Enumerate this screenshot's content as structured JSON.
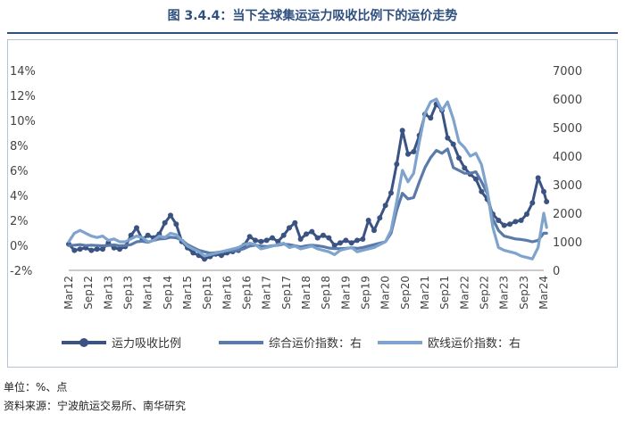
{
  "figure": {
    "title": "图 3.4.4：当下全球集运运力吸收比例下的运价走势",
    "unit_note": "单位：%、点",
    "source_note": "资料来源：宁波航运交易所、南华研究"
  },
  "chart_data": {
    "type": "line",
    "title": "图 3.4.4：当下全球集运运力吸收比例下的运价走势",
    "x_ticks": [
      "Mar12",
      "Sep12",
      "Mar13",
      "Sep13",
      "Mar14",
      "Sep14",
      "Mar15",
      "Sep15",
      "Mar16",
      "Sep16",
      "Mar17",
      "Sep17",
      "Mar18",
      "Sep18",
      "Mar19",
      "Sep19",
      "Mar20",
      "Sep20",
      "Mar21",
      "Sep21",
      "Mar22",
      "Sep22",
      "Mar23",
      "Sep23",
      "Mar24"
    ],
    "left_axis": {
      "ylim": [
        -2,
        14
      ],
      "ticks": [
        -2,
        0,
        2,
        4,
        6,
        8,
        10,
        12,
        14
      ],
      "tick_labels": [
        "-2%",
        "0%",
        "2%",
        "4%",
        "6%",
        "8%",
        "10%",
        "12%",
        "14%"
      ]
    },
    "right_axis": {
      "ylim": [
        0,
        7000
      ],
      "ticks": [
        0,
        1000,
        2000,
        3000,
        4000,
        5000,
        6000,
        7000
      ],
      "tick_labels": [
        "0",
        "1000",
        "2000",
        "3000",
        "4000",
        "5000",
        "6000",
        "7000"
      ]
    },
    "legend_position": "bottom",
    "series": [
      {
        "name": "运力吸收比例",
        "axis": "left",
        "color": "#3a5383",
        "marker": true,
        "points": [
          [
            0,
            0.1
          ],
          [
            2,
            -0.4
          ],
          [
            4,
            -0.3
          ],
          [
            6,
            -0.2
          ],
          [
            8,
            -0.4
          ],
          [
            10,
            -0.3
          ],
          [
            12,
            -0.3
          ],
          [
            14,
            0.2
          ],
          [
            16,
            -0.2
          ],
          [
            18,
            -0.3
          ],
          [
            20,
            -0.1
          ],
          [
            22,
            0.8
          ],
          [
            24,
            1.4
          ],
          [
            26,
            0.5
          ],
          [
            28,
            0.8
          ],
          [
            30,
            0.6
          ],
          [
            32,
            0.9
          ],
          [
            34,
            1.8
          ],
          [
            36,
            2.4
          ],
          [
            38,
            1.7
          ],
          [
            40,
            0.3
          ],
          [
            42,
            -0.2
          ],
          [
            44,
            -0.6
          ],
          [
            46,
            -0.8
          ],
          [
            48,
            -1.1
          ],
          [
            50,
            -0.9
          ],
          [
            52,
            -0.7
          ],
          [
            54,
            -0.8
          ],
          [
            56,
            -0.6
          ],
          [
            58,
            -0.5
          ],
          [
            60,
            -0.4
          ],
          [
            62,
            0.0
          ],
          [
            64,
            0.7
          ],
          [
            66,
            0.4
          ],
          [
            68,
            0.3
          ],
          [
            70,
            0.4
          ],
          [
            72,
            0.6
          ],
          [
            74,
            0.3
          ],
          [
            76,
            0.8
          ],
          [
            78,
            1.4
          ],
          [
            80,
            1.8
          ],
          [
            82,
            0.5
          ],
          [
            84,
            0.9
          ],
          [
            86,
            1.1
          ],
          [
            88,
            0.6
          ],
          [
            90,
            0.8
          ],
          [
            92,
            0.6
          ],
          [
            94,
            0.0
          ],
          [
            96,
            0.2
          ],
          [
            98,
            0.4
          ],
          [
            100,
            0.2
          ],
          [
            102,
            0.4
          ],
          [
            104,
            0.5
          ],
          [
            106,
            2.0
          ],
          [
            108,
            1.2
          ],
          [
            110,
            2.2
          ],
          [
            112,
            3.2
          ],
          [
            114,
            4.2
          ],
          [
            116,
            6.5
          ],
          [
            118,
            9.2
          ],
          [
            120,
            7.3
          ],
          [
            122,
            7.5
          ],
          [
            124,
            8.8
          ],
          [
            126,
            10.5
          ],
          [
            128,
            10.2
          ],
          [
            130,
            11.3
          ],
          [
            132,
            10.8
          ],
          [
            134,
            8.6
          ],
          [
            136,
            8.1
          ],
          [
            138,
            7.0
          ],
          [
            140,
            6.2
          ],
          [
            142,
            5.7
          ],
          [
            144,
            5.3
          ],
          [
            146,
            4.3
          ],
          [
            148,
            3.7
          ],
          [
            150,
            2.5
          ],
          [
            152,
            2.0
          ],
          [
            154,
            1.6
          ],
          [
            156,
            1.7
          ],
          [
            158,
            1.9
          ],
          [
            160,
            2.0
          ],
          [
            162,
            2.5
          ],
          [
            164,
            3.4
          ],
          [
            166,
            5.4
          ],
          [
            168,
            4.3
          ],
          [
            169,
            3.5
          ]
        ]
      },
      {
        "name": "综合运价指数：右",
        "axis": "right",
        "color": "#5a7aaa",
        "marker": false,
        "points": [
          [
            0,
            870
          ],
          [
            2,
            880
          ],
          [
            4,
            900
          ],
          [
            6,
            870
          ],
          [
            8,
            880
          ],
          [
            10,
            870
          ],
          [
            12,
            860
          ],
          [
            14,
            870
          ],
          [
            16,
            890
          ],
          [
            18,
            860
          ],
          [
            20,
            870
          ],
          [
            22,
            900
          ],
          [
            24,
            1000
          ],
          [
            26,
            1020
          ],
          [
            28,
            980
          ],
          [
            30,
            1050
          ],
          [
            32,
            1100
          ],
          [
            34,
            1110
          ],
          [
            36,
            1160
          ],
          [
            38,
            1140
          ],
          [
            40,
            1060
          ],
          [
            42,
            900
          ],
          [
            44,
            800
          ],
          [
            46,
            700
          ],
          [
            48,
            650
          ],
          [
            50,
            600
          ],
          [
            52,
            620
          ],
          [
            54,
            650
          ],
          [
            56,
            680
          ],
          [
            58,
            680
          ],
          [
            60,
            700
          ],
          [
            62,
            760
          ],
          [
            64,
            850
          ],
          [
            66,
            880
          ],
          [
            68,
            850
          ],
          [
            70,
            830
          ],
          [
            72,
            860
          ],
          [
            74,
            880
          ],
          [
            76,
            920
          ],
          [
            78,
            900
          ],
          [
            80,
            860
          ],
          [
            82,
            820
          ],
          [
            84,
            860
          ],
          [
            86,
            880
          ],
          [
            88,
            860
          ],
          [
            90,
            830
          ],
          [
            92,
            780
          ],
          [
            94,
            760
          ],
          [
            96,
            760
          ],
          [
            98,
            770
          ],
          [
            100,
            790
          ],
          [
            102,
            770
          ],
          [
            104,
            800
          ],
          [
            106,
            850
          ],
          [
            108,
            900
          ],
          [
            110,
            950
          ],
          [
            112,
            1000
          ],
          [
            114,
            1300
          ],
          [
            116,
            2100
          ],
          [
            118,
            2700
          ],
          [
            120,
            2500
          ],
          [
            122,
            2550
          ],
          [
            124,
            3100
          ],
          [
            126,
            3600
          ],
          [
            128,
            3950
          ],
          [
            130,
            4200
          ],
          [
            132,
            4100
          ],
          [
            134,
            4250
          ],
          [
            136,
            3600
          ],
          [
            138,
            3500
          ],
          [
            140,
            3400
          ],
          [
            142,
            3400
          ],
          [
            144,
            3450
          ],
          [
            146,
            3100
          ],
          [
            148,
            2700
          ],
          [
            150,
            1800
          ],
          [
            152,
            1400
          ],
          [
            154,
            1200
          ],
          [
            156,
            1150
          ],
          [
            158,
            1100
          ],
          [
            160,
            1080
          ],
          [
            162,
            1050
          ],
          [
            164,
            1000
          ],
          [
            166,
            1050
          ],
          [
            168,
            1300
          ],
          [
            169,
            1300
          ]
        ]
      },
      {
        "name": "欧线运价指数：右",
        "axis": "right",
        "color": "#7ea3cd",
        "marker": false,
        "points": [
          [
            0,
            1000
          ],
          [
            2,
            1300
          ],
          [
            4,
            1400
          ],
          [
            6,
            1300
          ],
          [
            8,
            1200
          ],
          [
            10,
            1150
          ],
          [
            12,
            1200
          ],
          [
            14,
            1050
          ],
          [
            16,
            1100
          ],
          [
            18,
            1000
          ],
          [
            20,
            1000
          ],
          [
            22,
            1100
          ],
          [
            24,
            1200
          ],
          [
            26,
            1150
          ],
          [
            28,
            1000
          ],
          [
            30,
            1050
          ],
          [
            32,
            1200
          ],
          [
            34,
            1150
          ],
          [
            36,
            1300
          ],
          [
            38,
            1250
          ],
          [
            40,
            1050
          ],
          [
            42,
            850
          ],
          [
            44,
            750
          ],
          [
            46,
            650
          ],
          [
            48,
            500
          ],
          [
            50,
            550
          ],
          [
            52,
            600
          ],
          [
            54,
            650
          ],
          [
            56,
            700
          ],
          [
            58,
            750
          ],
          [
            60,
            800
          ],
          [
            62,
            900
          ],
          [
            64,
            950
          ],
          [
            66,
            900
          ],
          [
            68,
            750
          ],
          [
            70,
            800
          ],
          [
            72,
            850
          ],
          [
            74,
            900
          ],
          [
            76,
            950
          ],
          [
            78,
            800
          ],
          [
            80,
            850
          ],
          [
            82,
            750
          ],
          [
            84,
            800
          ],
          [
            86,
            850
          ],
          [
            88,
            750
          ],
          [
            90,
            700
          ],
          [
            92,
            650
          ],
          [
            94,
            550
          ],
          [
            96,
            700
          ],
          [
            98,
            750
          ],
          [
            100,
            800
          ],
          [
            102,
            650
          ],
          [
            104,
            700
          ],
          [
            106,
            750
          ],
          [
            108,
            800
          ],
          [
            110,
            900
          ],
          [
            112,
            1000
          ],
          [
            114,
            1400
          ],
          [
            116,
            2400
          ],
          [
            118,
            3500
          ],
          [
            120,
            3100
          ],
          [
            122,
            3400
          ],
          [
            124,
            4500
          ],
          [
            126,
            5500
          ],
          [
            128,
            5900
          ],
          [
            130,
            6000
          ],
          [
            132,
            5600
          ],
          [
            134,
            5900
          ],
          [
            136,
            5300
          ],
          [
            138,
            4500
          ],
          [
            140,
            4300
          ],
          [
            142,
            4000
          ],
          [
            144,
            4100
          ],
          [
            146,
            3700
          ],
          [
            148,
            2800
          ],
          [
            150,
            1500
          ],
          [
            152,
            800
          ],
          [
            154,
            700
          ],
          [
            156,
            650
          ],
          [
            158,
            600
          ],
          [
            160,
            500
          ],
          [
            162,
            450
          ],
          [
            164,
            400
          ],
          [
            166,
            800
          ],
          [
            168,
            2000
          ],
          [
            169,
            1500
          ]
        ]
      }
    ]
  }
}
